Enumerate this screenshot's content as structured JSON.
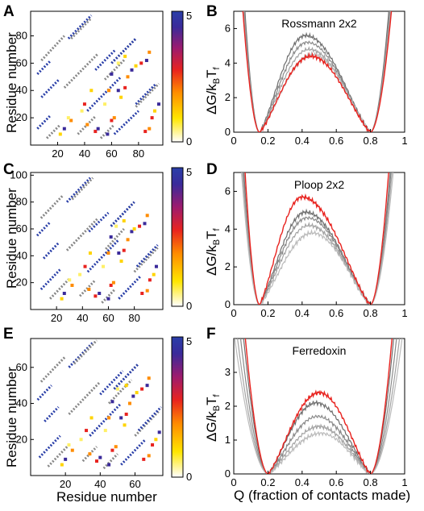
{
  "figure": {
    "panel_letters": [
      "A",
      "B",
      "C",
      "D",
      "E",
      "F"
    ],
    "contact_ylabel": "Residue number",
    "contact_xlabel": "Residue number",
    "landscape_ylabel_main": "ΔG/k",
    "landscape_ylabel_sub1": "B",
    "landscape_ylabel_mid": "T",
    "landscape_ylabel_sub2": "f",
    "landscape_xlabel": "Q (fraction of contacts made)"
  },
  "colors": {
    "native_contact": "#888888",
    "red_curve": "#e8231f",
    "gray_curves": [
      "#6e6e6e",
      "#8a8a8a",
      "#a3a3a3",
      "#bbbbbb",
      "#cccccc"
    ],
    "colormap": [
      "#ffffff",
      "#ffe600",
      "#ff8c00",
      "#e8231f",
      "#9b1b6f",
      "#3a2a9a",
      "#2a3fa8"
    ]
  },
  "chart_data": [
    {
      "type": "heatmap",
      "panel": "A",
      "xlim": [
        0,
        98
      ],
      "ylim": [
        0,
        98
      ],
      "xticks": [
        20,
        40,
        60,
        80
      ],
      "yticks": [
        20,
        40,
        60,
        80
      ],
      "colorbar": {
        "min": 0,
        "max": 5,
        "min_label": "0",
        "max_label": "5"
      },
      "native_lines": [
        [
          12,
          22,
          5,
          15
        ],
        [
          55,
          70,
          48,
          63
        ],
        [
          78,
          95,
          28,
          45
        ],
        [
          25,
          50,
          42,
          67
        ],
        [
          52,
          62,
          5,
          15
        ],
        [
          35,
          48,
          8,
          21
        ],
        [
          60,
          78,
          60,
          78
        ],
        [
          8,
          25,
          62,
          80
        ],
        [
          30,
          45,
          78,
          93
        ]
      ],
      "folding_spots": [
        [
          48,
          10,
          4
        ],
        [
          50,
          12,
          5
        ],
        [
          42,
          15,
          3
        ],
        [
          57,
          8,
          5
        ],
        [
          60,
          18,
          4
        ],
        [
          62,
          20,
          3
        ],
        [
          65,
          40,
          5
        ],
        [
          67,
          35,
          2
        ],
        [
          70,
          42,
          4
        ],
        [
          72,
          50,
          3
        ],
        [
          75,
          55,
          5
        ],
        [
          78,
          58,
          2
        ],
        [
          82,
          60,
          4
        ],
        [
          86,
          62,
          5
        ],
        [
          88,
          68,
          3
        ],
        [
          90,
          20,
          4
        ],
        [
          92,
          25,
          2
        ],
        [
          95,
          30,
          5
        ],
        [
          55,
          30,
          1
        ],
        [
          58,
          40,
          3
        ],
        [
          60,
          52,
          5
        ],
        [
          45,
          40,
          2
        ],
        [
          40,
          30,
          4
        ],
        [
          38,
          25,
          1
        ],
        [
          30,
          18,
          3
        ],
        [
          25,
          12,
          5
        ],
        [
          22,
          8,
          2
        ],
        [
          28,
          20,
          1
        ],
        [
          85,
          10,
          4
        ],
        [
          88,
          12,
          3
        ],
        [
          65,
          60,
          1
        ],
        [
          70,
          65,
          2
        ]
      ]
    },
    {
      "type": "line",
      "panel": "B",
      "title": "Rossmann 2x2",
      "xlim": [
        0,
        1
      ],
      "ylim": [
        0,
        7
      ],
      "xticks": [
        0,
        0.2,
        0.4,
        0.6,
        0.8,
        1
      ],
      "yticks": [
        0,
        2,
        4,
        6
      ],
      "xticklabels": [
        "0",
        "0.2",
        "0.4",
        "0.6",
        "0.8",
        "1"
      ],
      "yticklabels": [
        "0",
        "2",
        "4",
        "6"
      ],
      "wells": [
        0.15,
        0.8
      ],
      "red_barrier": 4.4,
      "red_peak_q": 0.45,
      "gray_barriers": [
        5.6,
        5.2,
        4.8,
        4.5
      ],
      "gray_peak_q": [
        0.42,
        0.43,
        0.44,
        0.46
      ]
    },
    {
      "type": "heatmap",
      "panel": "C",
      "xlim": [
        0,
        102
      ],
      "ylim": [
        0,
        102
      ],
      "xticks": [
        20,
        40,
        60,
        80
      ],
      "yticks": [
        20,
        40,
        60,
        80,
        100
      ],
      "colorbar": {
        "min": 0,
        "max": 5,
        "min_label": "0",
        "max_label": "5"
      },
      "native_lines": [
        [
          15,
          30,
          8,
          23
        ],
        [
          58,
          72,
          45,
          60
        ],
        [
          80,
          98,
          28,
          46
        ],
        [
          28,
          52,
          44,
          68
        ],
        [
          55,
          65,
          5,
          15
        ],
        [
          38,
          50,
          10,
          22
        ],
        [
          62,
          80,
          62,
          80
        ],
        [
          8,
          25,
          68,
          85
        ],
        [
          32,
          48,
          82,
          98
        ]
      ],
      "folding_spots": [
        [
          50,
          10,
          4
        ],
        [
          53,
          12,
          5
        ],
        [
          45,
          15,
          3
        ],
        [
          60,
          8,
          5
        ],
        [
          62,
          18,
          4
        ],
        [
          64,
          20,
          3
        ],
        [
          68,
          42,
          5
        ],
        [
          70,
          36,
          2
        ],
        [
          72,
          44,
          4
        ],
        [
          75,
          52,
          3
        ],
        [
          78,
          58,
          5
        ],
        [
          80,
          60,
          2
        ],
        [
          84,
          62,
          4
        ],
        [
          88,
          64,
          5
        ],
        [
          90,
          70,
          3
        ],
        [
          92,
          22,
          4
        ],
        [
          95,
          26,
          2
        ],
        [
          97,
          32,
          5
        ],
        [
          56,
          32,
          1
        ],
        [
          60,
          42,
          3
        ],
        [
          62,
          54,
          5
        ],
        [
          46,
          42,
          2
        ],
        [
          42,
          32,
          4
        ],
        [
          38,
          26,
          1
        ],
        [
          32,
          18,
          3
        ],
        [
          26,
          12,
          5
        ],
        [
          24,
          8,
          2
        ],
        [
          30,
          22,
          1
        ],
        [
          86,
          12,
          4
        ],
        [
          90,
          14,
          3
        ],
        [
          66,
          62,
          1
        ],
        [
          72,
          66,
          2
        ]
      ]
    },
    {
      "type": "line",
      "panel": "D",
      "title": "Ploop 2x2",
      "xlim": [
        0,
        1
      ],
      "ylim": [
        0,
        7
      ],
      "xticks": [
        0,
        0.2,
        0.4,
        0.6,
        0.8,
        1
      ],
      "yticks": [
        0,
        2,
        4,
        6
      ],
      "xticklabels": [
        "0",
        "0.2",
        "0.4",
        "0.6",
        "0.8",
        "1"
      ],
      "yticklabels": [
        "0",
        "2",
        "4",
        "6"
      ],
      "wells": [
        0.15,
        0.8
      ],
      "red_barrier": 5.7,
      "red_peak_q": 0.4,
      "gray_barriers": [
        4.9,
        4.6,
        4.2,
        3.8
      ],
      "gray_peak_q": [
        0.42,
        0.43,
        0.44,
        0.46
      ]
    },
    {
      "type": "heatmap",
      "panel": "E",
      "xlim": [
        0,
        76
      ],
      "ylim": [
        0,
        76
      ],
      "xticks": [
        20,
        40,
        60
      ],
      "yticks": [
        20,
        40,
        60
      ],
      "colorbar": {
        "min": 0,
        "max": 5,
        "min_label": "0",
        "max_label": "5"
      },
      "native_lines": [
        [
          10,
          22,
          5,
          17
        ],
        [
          45,
          58,
          40,
          53
        ],
        [
          60,
          74,
          22,
          36
        ],
        [
          22,
          40,
          34,
          52
        ],
        [
          42,
          50,
          4,
          12
        ],
        [
          30,
          38,
          8,
          16
        ],
        [
          48,
          62,
          48,
          62
        ],
        [
          6,
          20,
          52,
          66
        ],
        [
          25,
          38,
          62,
          75
        ]
      ],
      "folding_spots": [
        [
          38,
          8,
          4
        ],
        [
          40,
          10,
          5
        ],
        [
          34,
          12,
          3
        ],
        [
          45,
          6,
          5
        ],
        [
          47,
          14,
          4
        ],
        [
          49,
          16,
          3
        ],
        [
          52,
          32,
          5
        ],
        [
          54,
          28,
          2
        ],
        [
          55,
          34,
          4
        ],
        [
          57,
          40,
          3
        ],
        [
          59,
          44,
          5
        ],
        [
          61,
          46,
          2
        ],
        [
          64,
          48,
          4
        ],
        [
          67,
          50,
          5
        ],
        [
          68,
          54,
          3
        ],
        [
          70,
          17,
          4
        ],
        [
          72,
          20,
          2
        ],
        [
          74,
          24,
          5
        ],
        [
          43,
          25,
          1
        ],
        [
          45,
          32,
          3
        ],
        [
          47,
          41,
          5
        ],
        [
          35,
          32,
          2
        ],
        [
          32,
          25,
          4
        ],
        [
          29,
          20,
          1
        ],
        [
          24,
          14,
          3
        ],
        [
          20,
          9,
          5
        ],
        [
          18,
          6,
          2
        ],
        [
          22,
          17,
          1
        ],
        [
          65,
          9,
          4
        ],
        [
          68,
          11,
          3
        ],
        [
          50,
          48,
          1
        ],
        [
          55,
          50,
          2
        ]
      ]
    },
    {
      "type": "line",
      "panel": "F",
      "title": "Ferredoxin",
      "xlim": [
        0,
        1
      ],
      "ylim": [
        0,
        4
      ],
      "xticks": [
        0,
        0.2,
        0.4,
        0.6,
        0.8,
        1
      ],
      "yticks": [
        0,
        1,
        2,
        3
      ],
      "xticklabels": [
        "0",
        "0.2",
        "0.4",
        "0.6",
        "0.8",
        "1"
      ],
      "yticklabels": [
        "0",
        "1",
        "2",
        "3"
      ],
      "wells": [
        0.2,
        0.8
      ],
      "red_barrier": 2.4,
      "red_peak_q": 0.5,
      "gray_barriers": [
        2.1,
        1.7,
        1.4,
        1.2
      ],
      "gray_peak_q": [
        0.48,
        0.49,
        0.5,
        0.51
      ]
    }
  ]
}
